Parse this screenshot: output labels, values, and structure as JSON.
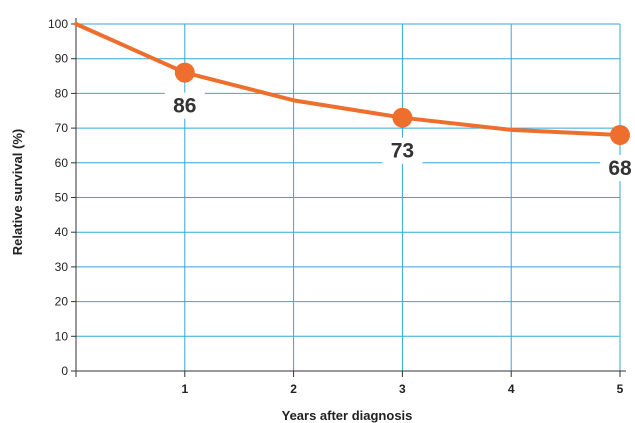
{
  "chart_data": {
    "type": "line",
    "xlabel": "Years after diagnosis",
    "ylabel": "Relative survival (%)",
    "xlim": [
      0,
      5
    ],
    "ylim": [
      0,
      100
    ],
    "x_ticks": [
      "1",
      "2",
      "3",
      "4",
      "5"
    ],
    "y_ticks": [
      "0",
      "10",
      "20",
      "30",
      "40",
      "50",
      "60",
      "70",
      "80",
      "90",
      "100"
    ],
    "grid": true,
    "series": [
      {
        "x": [
          0,
          1,
          2,
          3,
          4,
          5
        ],
        "y": [
          100,
          86,
          78,
          73,
          69.5,
          68
        ]
      }
    ],
    "markers": [
      {
        "x": 1,
        "y": 86,
        "label": "86"
      },
      {
        "x": 3,
        "y": 73,
        "label": "73"
      },
      {
        "x": 5,
        "y": 68,
        "label": "68"
      }
    ],
    "colors": {
      "line": "#ee6f2d",
      "grid": "#35a7d9",
      "axis": "#333333",
      "text": "#222222"
    }
  }
}
